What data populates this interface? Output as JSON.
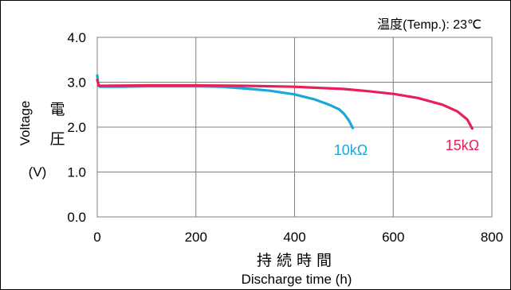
{
  "chart_data": {
    "type": "line",
    "annotation": "温度(Temp.): 23℃",
    "ylabel_en": "Voltage",
    "ylabel_jp_1": "電",
    "ylabel_jp_2": "圧",
    "ylabel_unit": "(V)",
    "xlabel_jp": "持 続 時 間",
    "xlabel_en": "Discharge time (h)",
    "xlim": [
      0,
      800
    ],
    "ylim": [
      0.0,
      4.0
    ],
    "x_ticks": [
      0,
      200,
      400,
      600,
      800
    ],
    "x_tick_labels": [
      "0",
      "200",
      "400",
      "600",
      "800"
    ],
    "y_ticks": [
      0.0,
      1.0,
      2.0,
      3.0,
      4.0
    ],
    "y_tick_labels": [
      "0.0",
      "1.0",
      "2.0",
      "3.0",
      "4.0"
    ],
    "grid": true,
    "series": [
      {
        "name": "10kΩ",
        "color": "#1ba8d8",
        "points": [
          [
            0,
            3.15
          ],
          [
            2,
            2.95
          ],
          [
            5,
            2.9
          ],
          [
            50,
            2.9
          ],
          [
            100,
            2.91
          ],
          [
            200,
            2.91
          ],
          [
            250,
            2.9
          ],
          [
            300,
            2.86
          ],
          [
            350,
            2.81
          ],
          [
            400,
            2.73
          ],
          [
            440,
            2.62
          ],
          [
            470,
            2.5
          ],
          [
            490,
            2.4
          ],
          [
            500,
            2.3
          ],
          [
            510,
            2.15
          ],
          [
            518,
            1.98
          ]
        ]
      },
      {
        "name": "15kΩ",
        "color": "#e8205a",
        "points": [
          [
            0,
            3.05
          ],
          [
            3,
            2.92
          ],
          [
            10,
            2.92
          ],
          [
            100,
            2.93
          ],
          [
            200,
            2.93
          ],
          [
            300,
            2.92
          ],
          [
            400,
            2.9
          ],
          [
            500,
            2.85
          ],
          [
            550,
            2.8
          ],
          [
            600,
            2.74
          ],
          [
            650,
            2.65
          ],
          [
            700,
            2.5
          ],
          [
            730,
            2.35
          ],
          [
            750,
            2.17
          ],
          [
            760,
            1.97
          ]
        ]
      }
    ]
  }
}
